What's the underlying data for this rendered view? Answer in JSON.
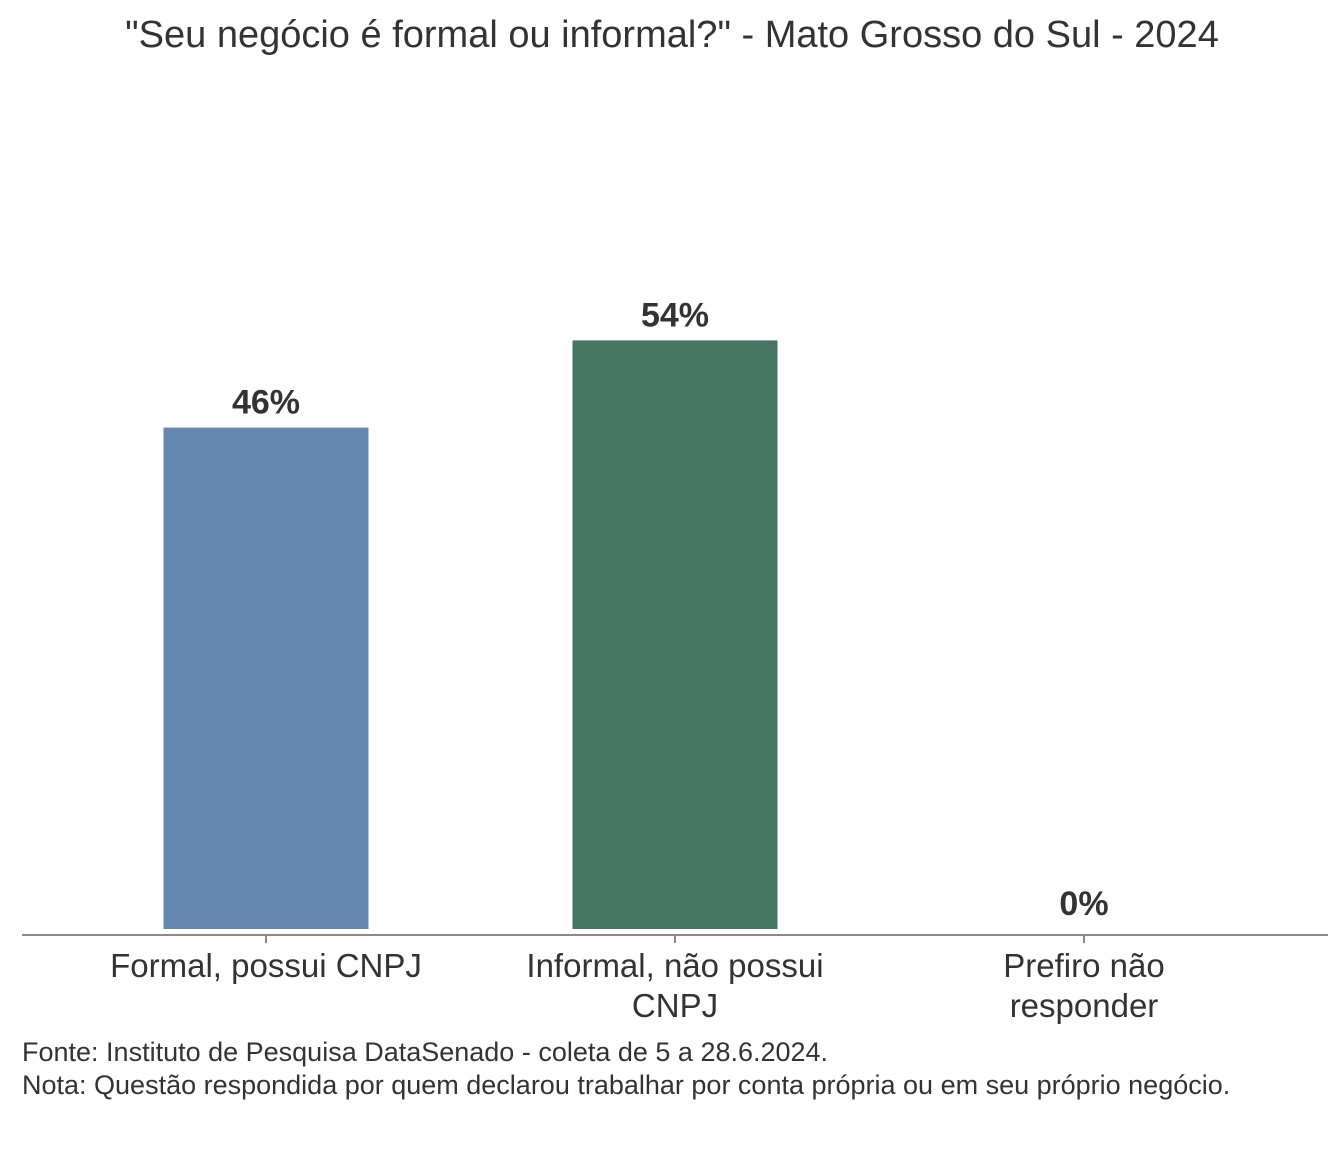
{
  "chart_data": {
    "type": "bar",
    "title": "\"Seu negócio é formal ou informal?\" - Mato Grosso do Sul - 2024",
    "categories": [
      "Formal, possui CNPJ",
      "Informal, não possui CNPJ",
      "Prefiro não responder"
    ],
    "category_lines": [
      [
        "Formal, possui CNPJ"
      ],
      [
        "Informal, não possui",
        "CNPJ"
      ],
      [
        "Prefiro não",
        "responder"
      ]
    ],
    "values": [
      46,
      54,
      0
    ],
    "value_labels": [
      "46%",
      "54%",
      "0%"
    ],
    "unit": "%",
    "colors": [
      "#6688b0",
      "#467564",
      "#9a8f7a"
    ],
    "ylim": [
      0,
      100
    ],
    "grid": false,
    "legend": "none",
    "xlabel": "",
    "ylabel": ""
  },
  "footer": {
    "source": "Fonte: Instituto de Pesquisa DataSenado - coleta de 5 a 28.6.2024.",
    "note": "Nota: Questão respondida por quem declarou trabalhar por conta própria ou em seu próprio negócio."
  }
}
